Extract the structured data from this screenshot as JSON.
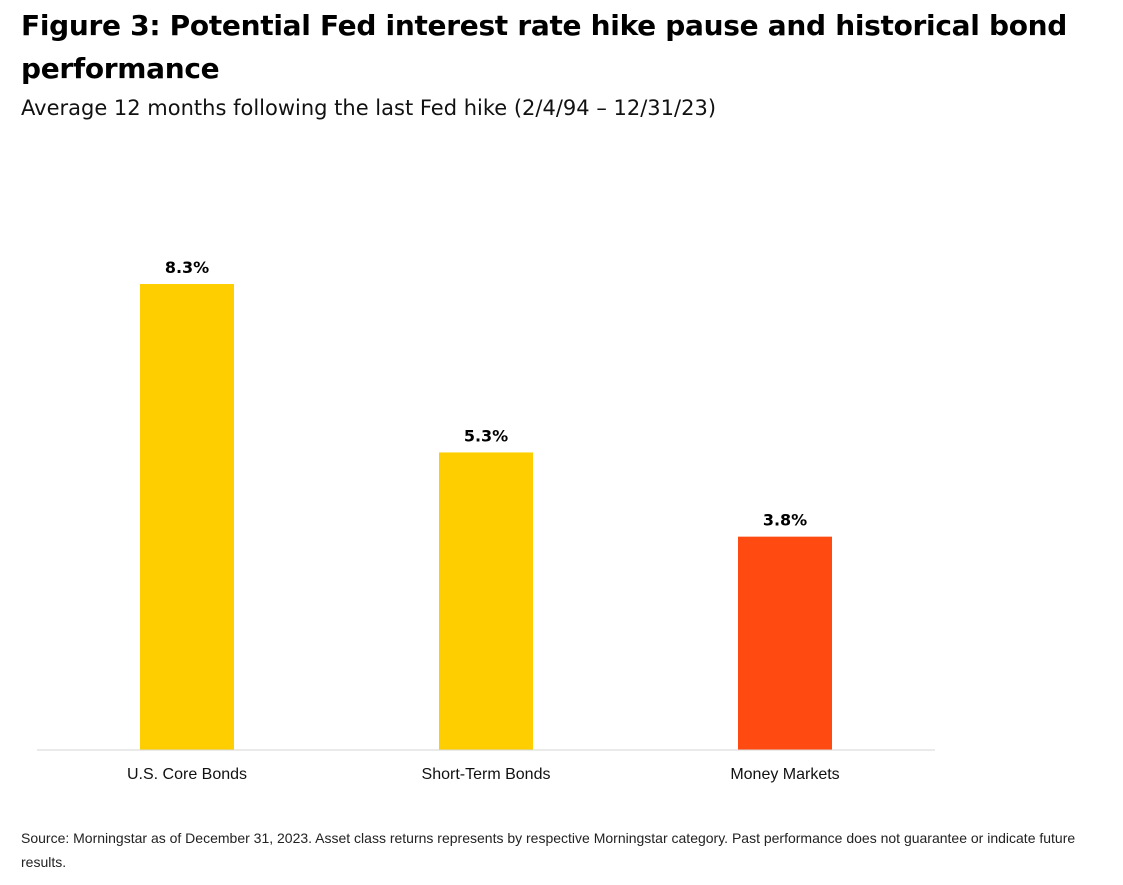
{
  "title": "Figure 3: Potential Fed interest rate hike pause and historical bond performance",
  "subtitle": "Average 12 months following the last Fed hike (2/4/94 – 12/31/23)",
  "source": "Source: Morningstar as of December 31, 2023. Asset class returns represents by respective Morningstar category. Past performance does not guarantee or indicate future results.",
  "colors": {
    "gold": "#FFCE00",
    "orange": "#FF4A12",
    "baseline": "#d6d6d6"
  },
  "chart_data": {
    "type": "bar",
    "categories": [
      "U.S. Core Bonds",
      "Short-Term Bonds",
      "Money Markets"
    ],
    "values": [
      8.3,
      5.3,
      3.8
    ],
    "value_labels": [
      "8.3%",
      "5.3%",
      "3.8%"
    ],
    "bar_colors": [
      "#FFCE00",
      "#FFCE00",
      "#FF4A12"
    ],
    "ylim": [
      0,
      8.3
    ],
    "grid": false,
    "legend": "none"
  }
}
